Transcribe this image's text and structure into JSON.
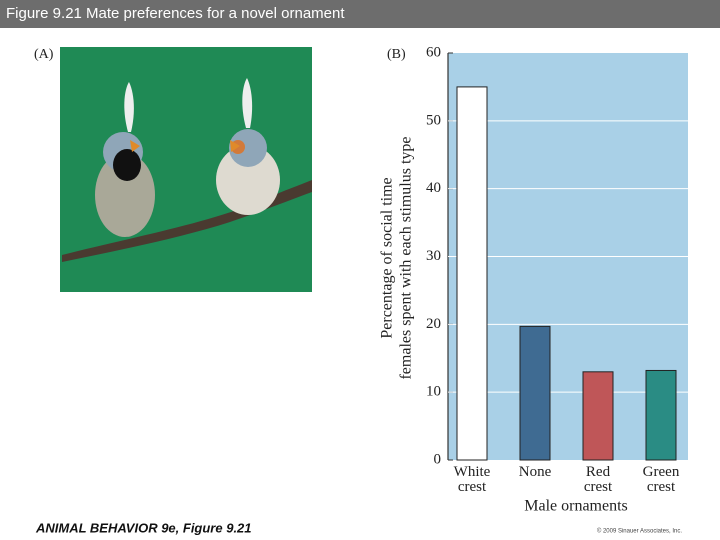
{
  "header": {
    "title": "Figure 9.21 Mate preferences for a novel ornament"
  },
  "panels": {
    "a_label": "(A)",
    "b_label": "(B)"
  },
  "chart_data": {
    "type": "bar",
    "categories": [
      "White crest",
      "None",
      "Red crest",
      "Green crest"
    ],
    "values": [
      55,
      19.7,
      13,
      13.2
    ],
    "colors": [
      "#ffffff",
      "#3f6b92",
      "#bf5658",
      "#2a8c84"
    ],
    "ylabel": [
      "Percentage of social time",
      "females spent with each stimulus type"
    ],
    "xlabel": "Male ornaments",
    "ylim": [
      0,
      60
    ],
    "yticks": [
      0,
      10,
      20,
      30,
      40,
      50,
      60
    ],
    "grid": true
  },
  "footer": {
    "source": "ANIMAL BEHAVIOR 9e, Figure 9.21",
    "copyright": "© 2009 Sinauer Associates, Inc."
  }
}
